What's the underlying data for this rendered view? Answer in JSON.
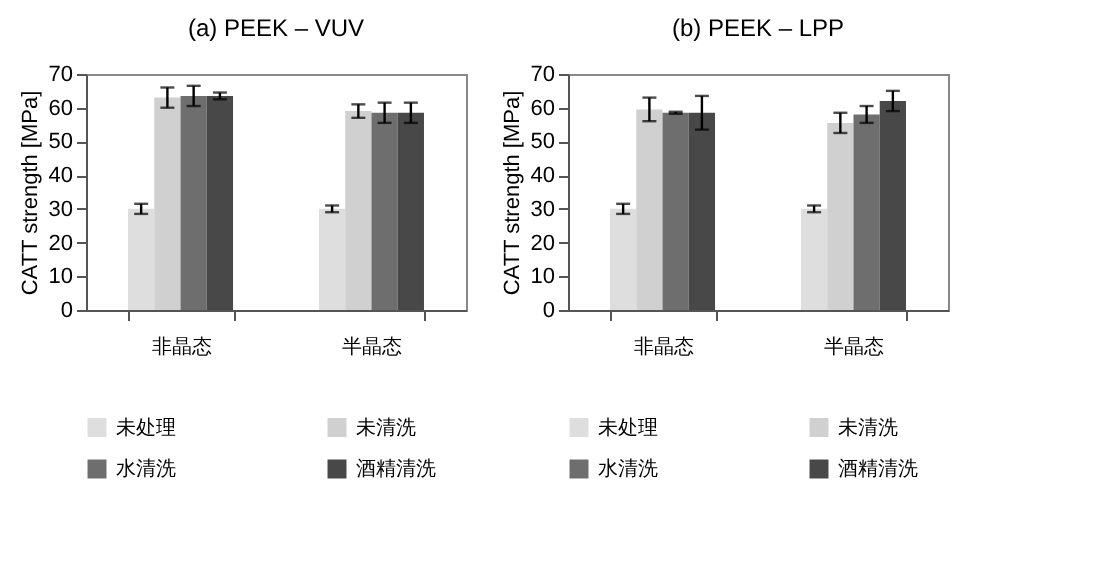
{
  "chart_data": [
    {
      "type": "bar",
      "title": "(a) PEEK – VUV",
      "ylabel": "CATT strength [MPa]",
      "categories": [
        "非晶态",
        "半晶态"
      ],
      "ylim": [
        0,
        70
      ],
      "yticks": [
        0,
        10,
        20,
        30,
        40,
        50,
        60,
        70
      ],
      "grid": false,
      "legend": "bottom",
      "series": [
        {
          "name": "未处理",
          "color": "#dedede",
          "values": [
            30,
            30
          ],
          "errors": [
            1.5,
            1
          ]
        },
        {
          "name": "未清洗",
          "color": "#d0d0d0",
          "values": [
            63,
            59
          ],
          "errors": [
            3,
            2
          ]
        },
        {
          "name": "水清洗",
          "color": "#6e6e6e",
          "values": [
            63.5,
            58.5
          ],
          "errors": [
            3,
            3
          ]
        },
        {
          "name": "酒精清洗",
          "color": "#484848",
          "values": [
            63.5,
            58.5
          ],
          "errors": [
            1,
            3
          ]
        }
      ]
    },
    {
      "type": "bar",
      "title": "(b) PEEK – LPP",
      "ylabel": "CATT strength [MPa]",
      "categories": [
        "非晶态",
        "半晶态"
      ],
      "ylim": [
        0,
        70
      ],
      "yticks": [
        0,
        10,
        20,
        30,
        40,
        50,
        60,
        70
      ],
      "grid": false,
      "legend": "bottom",
      "series": [
        {
          "name": "未处理",
          "color": "#dedede",
          "values": [
            30,
            30
          ],
          "errors": [
            1.5,
            1
          ]
        },
        {
          "name": "未清洗",
          "color": "#d0d0d0",
          "values": [
            59.5,
            55.5
          ],
          "errors": [
            3.5,
            3
          ]
        },
        {
          "name": "水清洗",
          "color": "#6e6e6e",
          "values": [
            58.5,
            58
          ],
          "errors": [
            0.3,
            2.5
          ]
        },
        {
          "name": "酒精清洗",
          "color": "#484848",
          "values": [
            58.5,
            62
          ],
          "errors": [
            5,
            3
          ]
        }
      ]
    }
  ]
}
